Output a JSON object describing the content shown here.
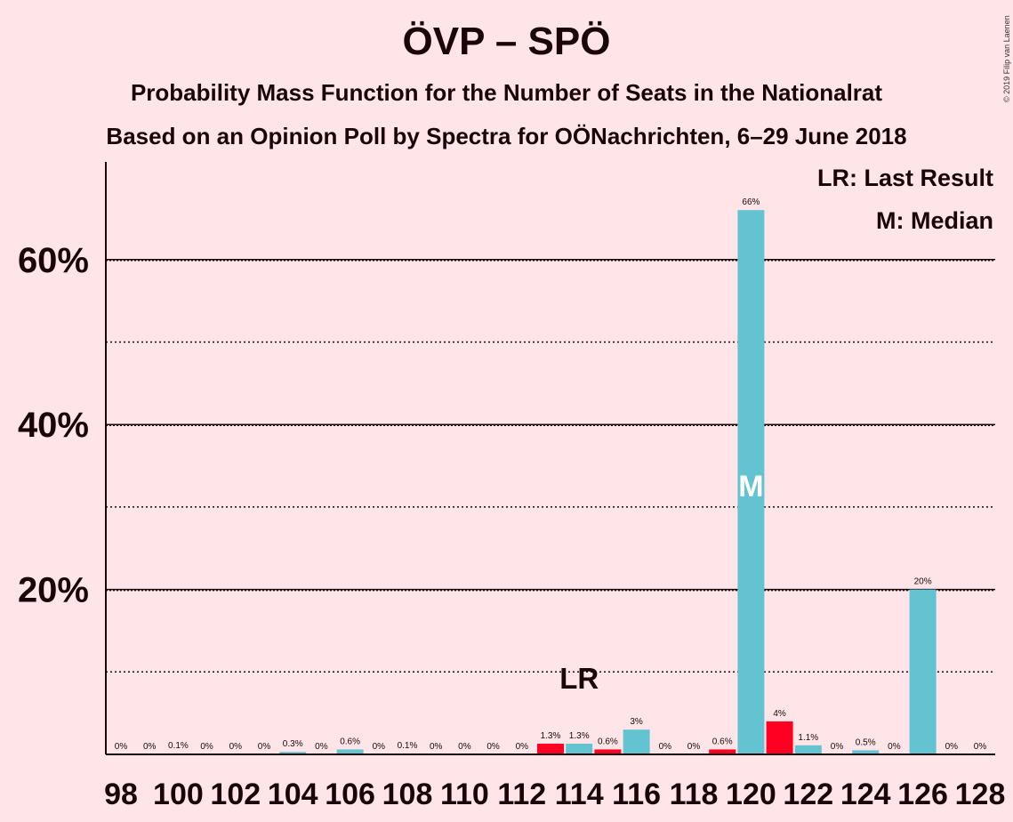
{
  "title": "ÖVP – SPÖ",
  "subtitle1": "Probability Mass Function for the Number of Seats in the Nationalrat",
  "subtitle2": "Based on an Opinion Poll by Spectra for OÖNachrichten, 6–29 June 2018",
  "copyright": "© 2019 Filip van Laenen",
  "legend": {
    "last_result": "LR: Last Result",
    "median": "M: Median"
  },
  "colors": {
    "background": "#ffe5e8",
    "bar_cyan": "#63c3d1",
    "bar_red": "#ff0022",
    "text": "#1a0608"
  },
  "chart_data": {
    "type": "bar",
    "ylim": [
      0,
      70
    ],
    "y_ticks": [
      20,
      40,
      60
    ],
    "y_tick_labels": [
      "20%",
      "40%",
      "60%"
    ],
    "y_minor_gridlines": [
      10,
      30,
      50
    ],
    "x_tick_labels": [
      "98",
      "100",
      "102",
      "104",
      "106",
      "108",
      "110",
      "112",
      "114",
      "116",
      "118",
      "120",
      "122",
      "124",
      "126",
      "128"
    ],
    "seats": [
      98,
      99,
      100,
      101,
      102,
      103,
      104,
      105,
      106,
      107,
      108,
      109,
      110,
      111,
      112,
      113,
      114,
      115,
      116,
      117,
      118,
      119,
      120,
      121,
      122,
      123,
      124,
      125,
      126,
      127,
      128
    ],
    "values": [
      0,
      0,
      0.1,
      0,
      0,
      0,
      0.3,
      0,
      0.6,
      0,
      0.1,
      0,
      0,
      0,
      0,
      1.3,
      1.3,
      0.6,
      3,
      0,
      0,
      0.6,
      66,
      4,
      1.1,
      0,
      0.5,
      0,
      20,
      0,
      0
    ],
    "value_labels": [
      "0%",
      "0%",
      "0.1%",
      "0%",
      "0%",
      "0%",
      "0.3%",
      "0%",
      "0.6%",
      "0%",
      "0.1%",
      "0%",
      "0%",
      "0%",
      "0%",
      "1.3%",
      "1.3%",
      "0.6%",
      "3%",
      "0%",
      "0%",
      "0.6%",
      "66%",
      "4%",
      "1.1%",
      "0%",
      "0.5%",
      "0%",
      "20%",
      "0%",
      "0%"
    ],
    "bar_colors": [
      "cyan",
      "cyan",
      "cyan",
      "cyan",
      "cyan",
      "cyan",
      "cyan",
      "cyan",
      "cyan",
      "cyan",
      "cyan",
      "cyan",
      "cyan",
      "cyan",
      "cyan",
      "red",
      "cyan",
      "red",
      "cyan",
      "cyan",
      "cyan",
      "red",
      "cyan",
      "red",
      "cyan",
      "cyan",
      "cyan",
      "cyan",
      "cyan",
      "cyan",
      "cyan"
    ],
    "last_result_seat": 114,
    "last_result_label": "LR",
    "median_seat": 120,
    "median_label": "M"
  }
}
